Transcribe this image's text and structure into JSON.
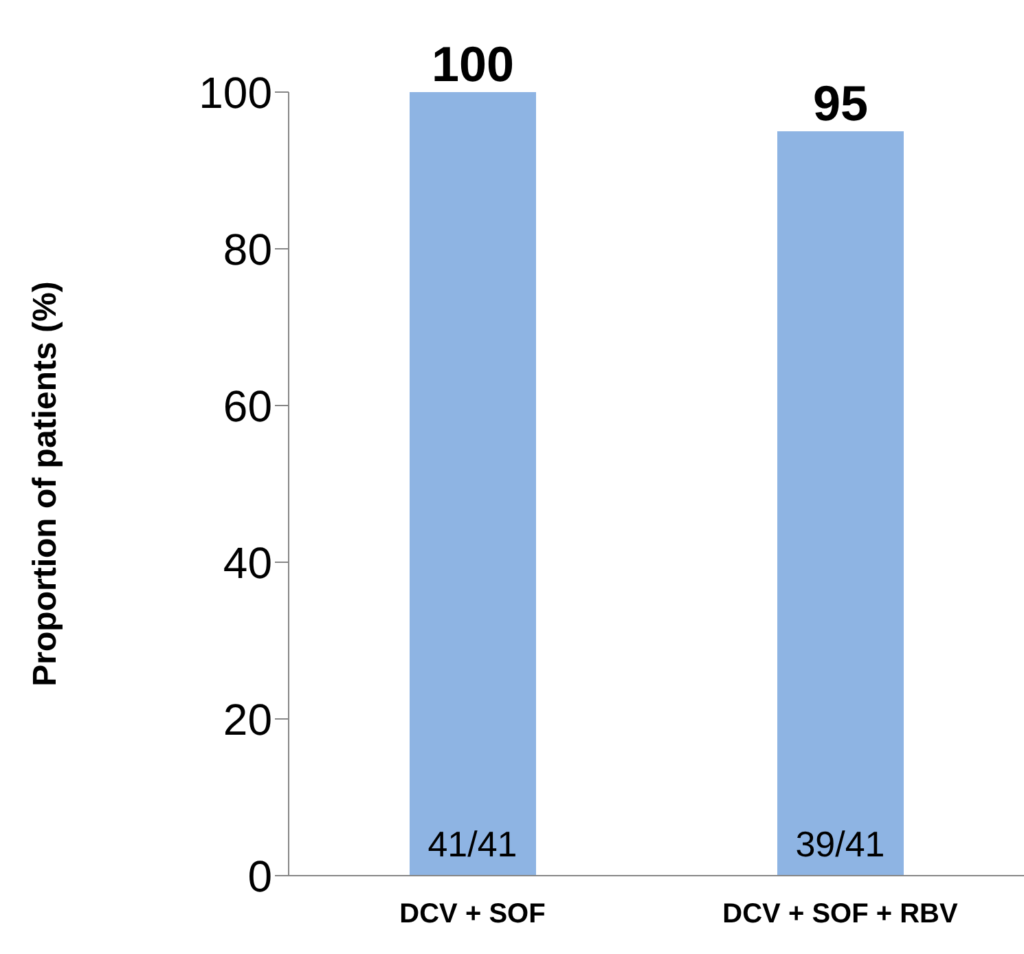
{
  "chart_data": {
    "type": "bar",
    "ylabel": "Proportion of patients (%)",
    "categories": [
      "DCV + SOF",
      "DCV + SOF + RBV"
    ],
    "values": [
      100,
      95
    ],
    "color": "#8eb4e3",
    "ylim": [
      0,
      100
    ],
    "yticks": [
      0,
      20,
      40,
      60,
      80,
      100
    ],
    "grid": false,
    "data_labels": true,
    "annotations": [
      "41/41",
      "39/41"
    ]
  }
}
